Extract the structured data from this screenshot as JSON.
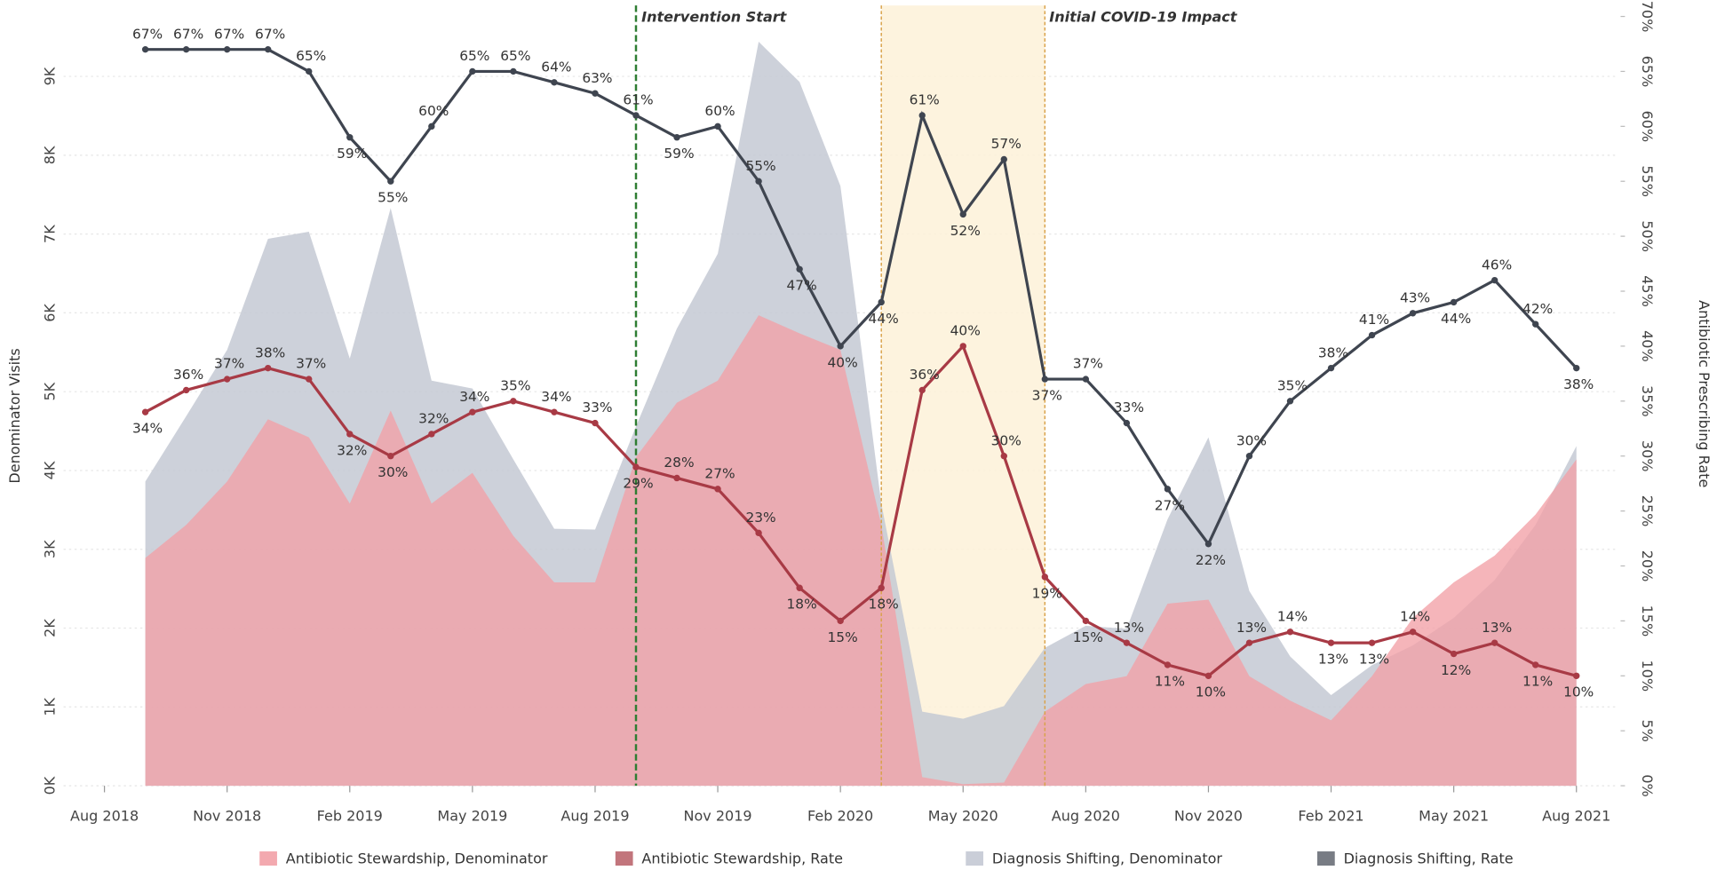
{
  "chart_data": {
    "type": "combo",
    "y_label": "Denominator Visits",
    "y2_label": "Antibiotic Prescribing Rate",
    "x": [
      "2018-09",
      "2018-10",
      "2018-11",
      "2018-12",
      "2019-01",
      "2019-02",
      "2019-03",
      "2019-04",
      "2019-05",
      "2019-06",
      "2019-07",
      "2019-08",
      "2019-09",
      "2019-10",
      "2019-11",
      "2019-12",
      "2020-01",
      "2020-02",
      "2020-03",
      "2020-04",
      "2020-05",
      "2020-06",
      "2020-07",
      "2020-08",
      "2020-09",
      "2020-10",
      "2020-11",
      "2020-12",
      "2021-01",
      "2021-02",
      "2021-03",
      "2021-04",
      "2021-05",
      "2021-06",
      "2021-07",
      "2021-08"
    ],
    "xlim": [
      "2018-07",
      "2021-09"
    ],
    "xticks": [
      {
        "value": "2018-08",
        "label": "Aug 2018"
      },
      {
        "value": "2018-11",
        "label": "Nov 2018"
      },
      {
        "value": "2019-02",
        "label": "Feb 2019"
      },
      {
        "value": "2019-05",
        "label": "May 2019"
      },
      {
        "value": "2019-08",
        "label": "Aug 2019"
      },
      {
        "value": "2019-11",
        "label": "Nov 2019"
      },
      {
        "value": "2020-02",
        "label": "Feb 2020"
      },
      {
        "value": "2020-05",
        "label": "May 2020"
      },
      {
        "value": "2020-08",
        "label": "Aug 2020"
      },
      {
        "value": "2020-11",
        "label": "Nov 2020"
      },
      {
        "value": "2021-02",
        "label": "Feb 2021"
      },
      {
        "value": "2021-05",
        "label": "May 2021"
      },
      {
        "value": "2021-08",
        "label": "Aug 2021"
      }
    ],
    "ylim": [
      0,
      9900
    ],
    "yticks": [
      {
        "value": 0,
        "label": "0K"
      },
      {
        "value": 1000,
        "label": "1K"
      },
      {
        "value": 2000,
        "label": "2K"
      },
      {
        "value": 3000,
        "label": "3K"
      },
      {
        "value": 4000,
        "label": "4K"
      },
      {
        "value": 5000,
        "label": "5K"
      },
      {
        "value": 6000,
        "label": "6K"
      },
      {
        "value": 7000,
        "label": "7K"
      },
      {
        "value": 8000,
        "label": "8K"
      },
      {
        "value": 9000,
        "label": "9K"
      }
    ],
    "y2lim": [
      0,
      71
    ],
    "y2ticks": [
      {
        "value": 0,
        "label": "0%"
      },
      {
        "value": 5,
        "label": "5%"
      },
      {
        "value": 10,
        "label": "10%"
      },
      {
        "value": 15,
        "label": "15%"
      },
      {
        "value": 20,
        "label": "20%"
      },
      {
        "value": 25,
        "label": "25%"
      },
      {
        "value": 30,
        "label": "30%"
      },
      {
        "value": 35,
        "label": "35%"
      },
      {
        "value": 40,
        "label": "40%"
      },
      {
        "value": 45,
        "label": "45%"
      },
      {
        "value": 50,
        "label": "50%"
      },
      {
        "value": 55,
        "label": "55%"
      },
      {
        "value": 60,
        "label": "60%"
      },
      {
        "value": 65,
        "label": "65%"
      },
      {
        "value": 70,
        "label": "70%"
      }
    ],
    "grid": true,
    "legend": "bottom",
    "series": [
      {
        "name": "Diagnosis Shifting, Denominator",
        "type": "area",
        "color": "#c4c9d4",
        "values": [
          3860,
          4690,
          5530,
          6940,
          7030,
          5420,
          7330,
          5140,
          5040,
          4140,
          3260,
          3250,
          4560,
          5800,
          6750,
          9440,
          8930,
          7610,
          3580,
          940,
          850,
          1010,
          1750,
          2030,
          1990,
          3380,
          4420,
          2470,
          1640,
          1150,
          1530,
          1780,
          2130,
          2610,
          3310,
          4310
        ]
      },
      {
        "name": "Antibiotic Stewardship, Denominator",
        "type": "area",
        "color": "#f2a0a6",
        "values": [
          2890,
          3310,
          3860,
          4650,
          4420,
          3580,
          4760,
          3580,
          3970,
          3170,
          2580,
          2580,
          4170,
          4860,
          5140,
          5970,
          5740,
          5530,
          3310,
          110,
          20,
          40,
          940,
          1290,
          1390,
          2310,
          2360,
          1390,
          1080,
          830,
          1390,
          2130,
          2580,
          2920,
          3440,
          4140
        ]
      },
      {
        "name": "Antibiotic Stewardship, Rate",
        "type": "line",
        "axis": "y2",
        "color": "#a83a45",
        "values": [
          34,
          36,
          37,
          38,
          37,
          32,
          30,
          32,
          34,
          35,
          34,
          33,
          29,
          28,
          27,
          23,
          18,
          15,
          18,
          36,
          40,
          30,
          19,
          15,
          13,
          11,
          10,
          13,
          14,
          13,
          13,
          14,
          12,
          13,
          11,
          10
        ],
        "value_labels": [
          "34%",
          "36%",
          "37%",
          "38%",
          "37%",
          "32%",
          "30%",
          "32%",
          "34%",
          "35%",
          "34%",
          "33%",
          "29%",
          "28%",
          "27%",
          "23%",
          "18%",
          "15%",
          "18%",
          "36%",
          "40%",
          "30%",
          "19%",
          "15%",
          "13%",
          "11%",
          "10%",
          "13%",
          "14%",
          "13%",
          "13%",
          "14%",
          "12%",
          "13%",
          "11%",
          "10%"
        ]
      },
      {
        "name": "Diagnosis Shifting, Rate",
        "type": "line",
        "axis": "y2",
        "color": "#3f4550",
        "values": [
          67,
          67,
          67,
          67,
          65,
          59,
          55,
          60,
          65,
          65,
          64,
          63,
          61,
          59,
          60,
          55,
          47,
          40,
          44,
          61,
          52,
          57,
          37,
          37,
          33,
          27,
          22,
          30,
          35,
          38,
          41,
          43,
          44,
          46,
          42,
          38
        ],
        "value_labels": [
          "67%",
          "67%",
          "67%",
          "67%",
          "65%",
          "59%",
          "55%",
          "60%",
          "65%",
          "65%",
          "64%",
          "63%",
          "61%",
          "59%",
          "60%",
          "55%",
          "47%",
          "40%",
          "44%",
          "61%",
          "52%",
          "57%",
          "37%",
          "37%",
          "33%",
          "27%",
          "22%",
          "30%",
          "35%",
          "38%",
          "41%",
          "43%",
          "44%",
          "46%",
          "42%",
          "38%"
        ]
      }
    ],
    "annotations": [
      {
        "text": "Intervention Start",
        "x": "2019-09",
        "color": "#2e7d32"
      },
      {
        "text": "Initial COVID-19 Impact",
        "x": [
          "2020-03",
          "2020-07"
        ],
        "color": "#d9a24a"
      }
    ]
  }
}
